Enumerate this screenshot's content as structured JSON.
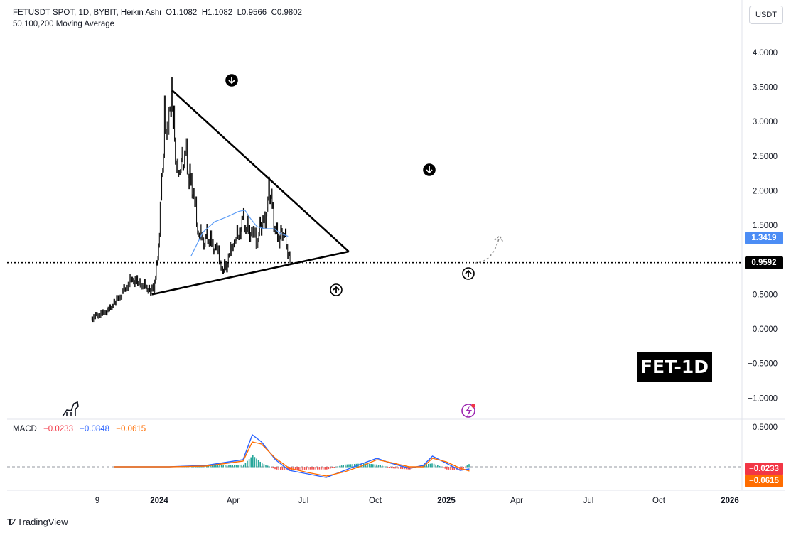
{
  "header": {
    "symbol_line": "FETUSDT SPOT, 1D, BYBIT, Heikin Ashi",
    "ohlc_open": "O1.1082",
    "ohlc_high": "H1.1082",
    "ohlc_low": "L0.9566",
    "ohlc_close": "C0.9802",
    "indicator_line": "50,100,200 Moving Average"
  },
  "currency": "USDT",
  "badge": "FET-1D",
  "footer": {
    "brand": "TradingView"
  },
  "macd": {
    "label": "MACD",
    "value_macd": "−0.0233",
    "value_signal": "−0.0848",
    "value_hist": "−0.0615",
    "axis_label": "0.5000",
    "tag_macd": "−0.0233",
    "tag_hist": "−0.0615"
  },
  "tags": {
    "ma": "1.3419",
    "price": "0.9592"
  },
  "colors": {
    "candles": "#000000",
    "ma": "#5b9cf6",
    "macd_line": "#2962ff",
    "signal_line": "#ff6d00",
    "hist_pos": "#26a69a",
    "hist_neg": "#ef5350",
    "tag_macd": "#f23645",
    "tag_hist": "#ff6d00",
    "tag_ma": "#4c8df5",
    "tag_price": "#000000"
  },
  "icons": [
    "arrow-down-circle-icon",
    "arrow-up-circle-icon",
    "dino-icon",
    "lightning-icon",
    "dashed-forecast-arrow-icon"
  ],
  "chart_data": {
    "type": "line",
    "series": [
      {
        "values": [
          [
            "2023-09-01",
            0.15
          ],
          [
            "2023-09-15",
            0.19
          ],
          [
            "2023-10-01",
            0.22
          ],
          [
            "2023-10-15",
            0.27
          ],
          [
            "2023-11-01",
            0.38
          ],
          [
            "2023-11-15",
            0.48
          ],
          [
            "2023-12-01",
            0.62
          ],
          [
            "2023-12-15",
            0.72
          ],
          [
            "2024-01-01",
            0.66
          ],
          [
            "2024-01-15",
            0.63
          ],
          [
            "2024-02-01",
            0.56
          ],
          [
            "2024-02-10",
            0.58
          ],
          [
            "2024-02-20",
            1.05
          ],
          [
            "2024-03-01",
            2.1
          ],
          [
            "2024-03-08",
            3.0
          ],
          [
            "2024-03-15",
            2.7
          ],
          [
            "2024-03-22",
            3.1
          ],
          [
            "2024-03-28",
            3.3
          ],
          [
            "2024-04-05",
            2.55
          ],
          [
            "2024-04-12",
            2.3
          ],
          [
            "2024-04-20",
            2.45
          ],
          [
            "2024-05-01",
            2.55
          ],
          [
            "2024-05-10",
            2.15
          ],
          [
            "2024-05-20",
            2.05
          ],
          [
            "2024-06-01",
            1.45
          ],
          [
            "2024-06-15",
            1.25
          ],
          [
            "2024-06-25",
            1.35
          ],
          [
            "2024-07-05",
            1.25
          ],
          [
            "2024-07-20",
            1.15
          ],
          [
            "2024-08-05",
            0.85
          ],
          [
            "2024-08-15",
            0.92
          ],
          [
            "2024-09-01",
            1.3
          ],
          [
            "2024-09-15",
            1.35
          ],
          [
            "2024-09-25",
            1.6
          ],
          [
            "2024-10-05",
            1.45
          ],
          [
            "2024-10-20",
            1.4
          ],
          [
            "2024-11-01",
            1.25
          ],
          [
            "2024-11-10",
            1.5
          ],
          [
            "2024-11-20",
            1.55
          ],
          [
            "2024-12-01",
            1.95
          ],
          [
            "2024-12-08",
            1.85
          ],
          [
            "2024-12-18",
            1.4
          ],
          [
            "2024-12-28",
            1.3
          ],
          [
            "2025-01-05",
            1.45
          ],
          [
            "2025-01-15",
            1.25
          ],
          [
            "2025-01-25",
            0.98
          ]
        ]
      },
      {
        "values": [
          [
            "2024-05-15",
            1.05
          ],
          [
            "2024-06-15",
            1.4
          ],
          [
            "2024-07-15",
            1.55
          ],
          [
            "2024-08-15",
            1.62
          ],
          [
            "2024-09-15",
            1.7
          ],
          [
            "2024-10-01",
            1.72
          ],
          [
            "2024-10-15",
            1.6
          ],
          [
            "2024-11-01",
            1.48
          ],
          [
            "2024-11-20",
            1.45
          ],
          [
            "2024-12-15",
            1.45
          ],
          [
            "2025-01-01",
            1.38
          ],
          [
            "2025-01-20",
            1.34
          ]
        ]
      }
    ],
    "trendlines": [
      {
        "from": [
          "2024-03-28",
          3.45
        ],
        "to": [
          "2025-06-25",
          1.12
        ]
      },
      {
        "from": [
          "2024-02-05",
          0.5
        ],
        "to": [
          "2025-06-25",
          1.12
        ]
      }
    ],
    "horizontal_line": 0.9592,
    "y_ticks": [
      "4.0000",
      "3.5000",
      "3.0000",
      "2.5000",
      "2.0000",
      "1.5000",
      "1.0000",
      "0.5000",
      "0.0000",
      "−0.5000",
      "−1.0000"
    ],
    "x_ticks": [
      "9",
      "2024",
      "Apr",
      "Jul",
      "Oct",
      "2025",
      "Apr",
      "Jul",
      "Oct",
      "2026"
    ],
    "ylim": [
      -1.25,
      4.4
    ],
    "macd_series": [
      {
        "values": [
          [
            0,
            0
          ],
          [
            60,
            0.0
          ],
          [
            100,
            0.02
          ],
          [
            140,
            0.1
          ],
          [
            150,
            0.45
          ],
          [
            160,
            0.35
          ],
          [
            175,
            0.1
          ],
          [
            190,
            -0.05
          ],
          [
            210,
            -0.1
          ],
          [
            230,
            -0.15
          ],
          [
            250,
            -0.05
          ],
          [
            270,
            0.05
          ],
          [
            285,
            0.12
          ],
          [
            300,
            0.05
          ],
          [
            320,
            -0.02
          ],
          [
            335,
            0.02
          ],
          [
            345,
            0.15
          ],
          [
            360,
            0.05
          ],
          [
            375,
            -0.05
          ],
          [
            385,
            -0.03
          ]
        ]
      },
      {
        "values": [
          [
            0,
            0
          ],
          [
            60,
            0.0
          ],
          [
            100,
            0.01
          ],
          [
            140,
            0.08
          ],
          [
            150,
            0.35
          ],
          [
            160,
            0.32
          ],
          [
            175,
            0.12
          ],
          [
            190,
            -0.02
          ],
          [
            210,
            -0.08
          ],
          [
            230,
            -0.13
          ],
          [
            250,
            -0.07
          ],
          [
            270,
            0.02
          ],
          [
            285,
            0.1
          ],
          [
            300,
            0.06
          ],
          [
            320,
            0.0
          ],
          [
            335,
            0.0
          ],
          [
            345,
            0.12
          ],
          [
            360,
            0.07
          ],
          [
            375,
            -0.02
          ],
          [
            385,
            -0.06
          ]
        ]
      }
    ]
  }
}
